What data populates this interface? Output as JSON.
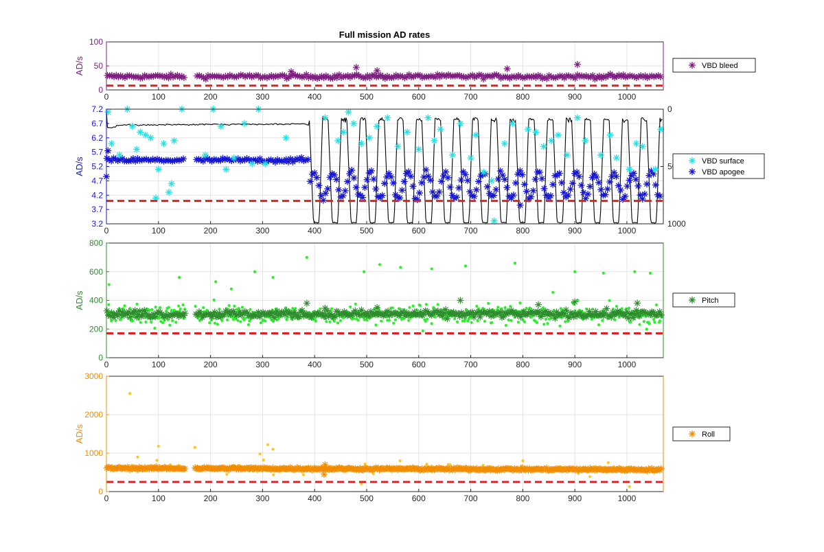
{
  "colors": {
    "bleed": "#7E1E80",
    "surface": "#22E0E6",
    "apogee": "#1414D2",
    "depth": "#000000",
    "pitch_dark": "#2E8B2E",
    "pitch_light": "#2AF02A",
    "roll_dark": "#F28C00",
    "roll_light": "#FFC81E",
    "threshold": "#E02020"
  },
  "chart_data": [
    {
      "id": "bleed",
      "type": "scatter",
      "title": "Full mission AD rates",
      "ylabel": "AD/s",
      "ylim": [
        0,
        100
      ],
      "xlim": [
        0,
        1070
      ],
      "xticks": [
        0,
        100,
        200,
        300,
        400,
        500,
        600,
        700,
        800,
        900,
        1000
      ],
      "yticks": [
        0,
        50,
        100
      ],
      "grid": true,
      "legend_position": "right",
      "threshold": 9,
      "series": [
        {
          "name": "VBD bleed",
          "mean": 28,
          "spread": 4,
          "gap": [
            152,
            170
          ],
          "outliers": [
            [
              480,
              47
            ],
            [
              520,
              40
            ],
            [
              770,
              44
            ],
            [
              905,
              53
            ],
            [
              355,
              38
            ]
          ]
        }
      ]
    },
    {
      "id": "vbd",
      "type": "scatter",
      "ylabel": "AD/s",
      "ylim": [
        3.2,
        7.2
      ],
      "xlim": [
        0,
        1070
      ],
      "xticks": [
        0,
        100,
        200,
        300,
        400,
        500,
        600,
        700,
        800,
        900,
        1000
      ],
      "yticks": [
        3.2,
        3.7,
        4.2,
        4.7,
        5.2,
        5.7,
        6.2,
        6.7,
        7.2
      ],
      "y2lim": [
        0,
        1000
      ],
      "y2ticks": [
        0,
        500,
        1000
      ],
      "grid": true,
      "legend_position": "right",
      "threshold": 4.0,
      "series": [
        {
          "name": "VBD surface",
          "points": [
            [
              3,
              7.1
            ],
            [
              10,
              6.0
            ],
            [
              25,
              5.6
            ],
            [
              40,
              7.2
            ],
            [
              50,
              6.6
            ],
            [
              58,
              5.8
            ],
            [
              65,
              6.4
            ],
            [
              75,
              6.3
            ],
            [
              85,
              6.2
            ],
            [
              95,
              4.1
            ],
            [
              100,
              5.1
            ],
            [
              110,
              6.0
            ],
            [
              120,
              4.3
            ],
            [
              125,
              4.6
            ],
            [
              130,
              6.1
            ],
            [
              145,
              7.3
            ],
            [
              190,
              5.6
            ],
            [
              205,
              7.2
            ],
            [
              220,
              6.6
            ],
            [
              230,
              5.1
            ],
            [
              245,
              5.5
            ],
            [
              265,
              6.7
            ],
            [
              280,
              5.3
            ],
            [
              292,
              7.2
            ],
            [
              305,
              5.3
            ],
            [
              345,
              6.2
            ],
            [
              420,
              6.9
            ],
            [
              445,
              6.1
            ],
            [
              455,
              6.4
            ],
            [
              465,
              7.1
            ],
            [
              475,
              6.7
            ],
            [
              490,
              6.0
            ],
            [
              505,
              6.2
            ],
            [
              520,
              6.6
            ],
            [
              540,
              6.9
            ],
            [
              560,
              5.9
            ],
            [
              578,
              6.4
            ],
            [
              600,
              5.8
            ],
            [
              618,
              6.9
            ],
            [
              630,
              6.1
            ],
            [
              642,
              6.5
            ],
            [
              665,
              5.6
            ],
            [
              680,
              6.7
            ],
            [
              700,
              5.5
            ],
            [
              710,
              6.3
            ],
            [
              725,
              5.0
            ],
            [
              740,
              4.7
            ],
            [
              745,
              3.3
            ],
            [
              765,
              6.0
            ],
            [
              780,
              6.7
            ],
            [
              810,
              6.5
            ],
            [
              825,
              6.4
            ],
            [
              840,
              5.9
            ],
            [
              855,
              6.1
            ],
            [
              868,
              6.3
            ],
            [
              885,
              5.6
            ],
            [
              905,
              6.9
            ],
            [
              920,
              6.1
            ],
            [
              950,
              5.6
            ],
            [
              968,
              6.3
            ],
            [
              980,
              5.5
            ],
            [
              1005,
              5.1
            ],
            [
              1018,
              6.0
            ],
            [
              1030,
              5.9
            ],
            [
              1055,
              5.1
            ],
            [
              1065,
              6.5
            ]
          ]
        },
        {
          "name": "VBD apogee",
          "mean_before": 5.42,
          "mean_after": 4.55,
          "switch_x": 390,
          "gap": [
            152,
            170
          ]
        }
      ],
      "depth_profile": {
        "before_level": 140,
        "after_max": 1000,
        "cycle_period": 36
      }
    },
    {
      "id": "pitch",
      "type": "scatter",
      "ylabel": "AD/s",
      "ylim": [
        0,
        800
      ],
      "xlim": [
        0,
        1070
      ],
      "xticks": [
        0,
        100,
        200,
        300,
        400,
        500,
        600,
        700,
        800,
        900,
        1000
      ],
      "yticks": [
        0,
        200,
        400,
        600,
        800
      ],
      "grid": true,
      "legend_position": "right",
      "threshold": 170,
      "series": [
        {
          "name": "Pitch",
          "mean": 305,
          "spread": 25,
          "gap": [
            152,
            170
          ]
        }
      ],
      "background_points": {
        "mean": 300,
        "spread": 70,
        "outliers": [
          [
            5,
            510
          ],
          [
            140,
            560
          ],
          [
            210,
            530
          ],
          [
            285,
            600
          ],
          [
            385,
            700
          ],
          [
            495,
            600
          ],
          [
            525,
            650
          ],
          [
            565,
            630
          ],
          [
            625,
            620
          ],
          [
            690,
            640
          ],
          [
            785,
            660
          ],
          [
            900,
            600
          ],
          [
            955,
            590
          ],
          [
            1015,
            600
          ],
          [
            1045,
            590
          ],
          [
            240,
            480
          ],
          [
            320,
            560
          ]
        ]
      }
    },
    {
      "id": "roll",
      "type": "scatter",
      "ylabel": "AD/s",
      "ylim": [
        0,
        3000
      ],
      "xlim": [
        0,
        1070
      ],
      "xticks": [
        0,
        100,
        200,
        300,
        400,
        500,
        600,
        700,
        800,
        900,
        1000
      ],
      "yticks": [
        0,
        1000,
        2000,
        3000
      ],
      "grid": true,
      "legend_position": "right",
      "threshold": 250,
      "series": [
        {
          "name": "Roll",
          "mean": 610,
          "spread": 30,
          "gap": [
            152,
            170
          ]
        }
      ],
      "background_points": {
        "mean": 600,
        "spread": 120,
        "outliers": [
          [
            45,
            2550
          ],
          [
            100,
            1180
          ],
          [
            170,
            1150
          ],
          [
            310,
            1220
          ],
          [
            320,
            1100
          ],
          [
            295,
            980
          ],
          [
            60,
            900
          ],
          [
            490,
            200
          ],
          [
            1005,
            130
          ],
          [
            420,
            420
          ],
          [
            800,
            800
          ]
        ]
      }
    }
  ]
}
